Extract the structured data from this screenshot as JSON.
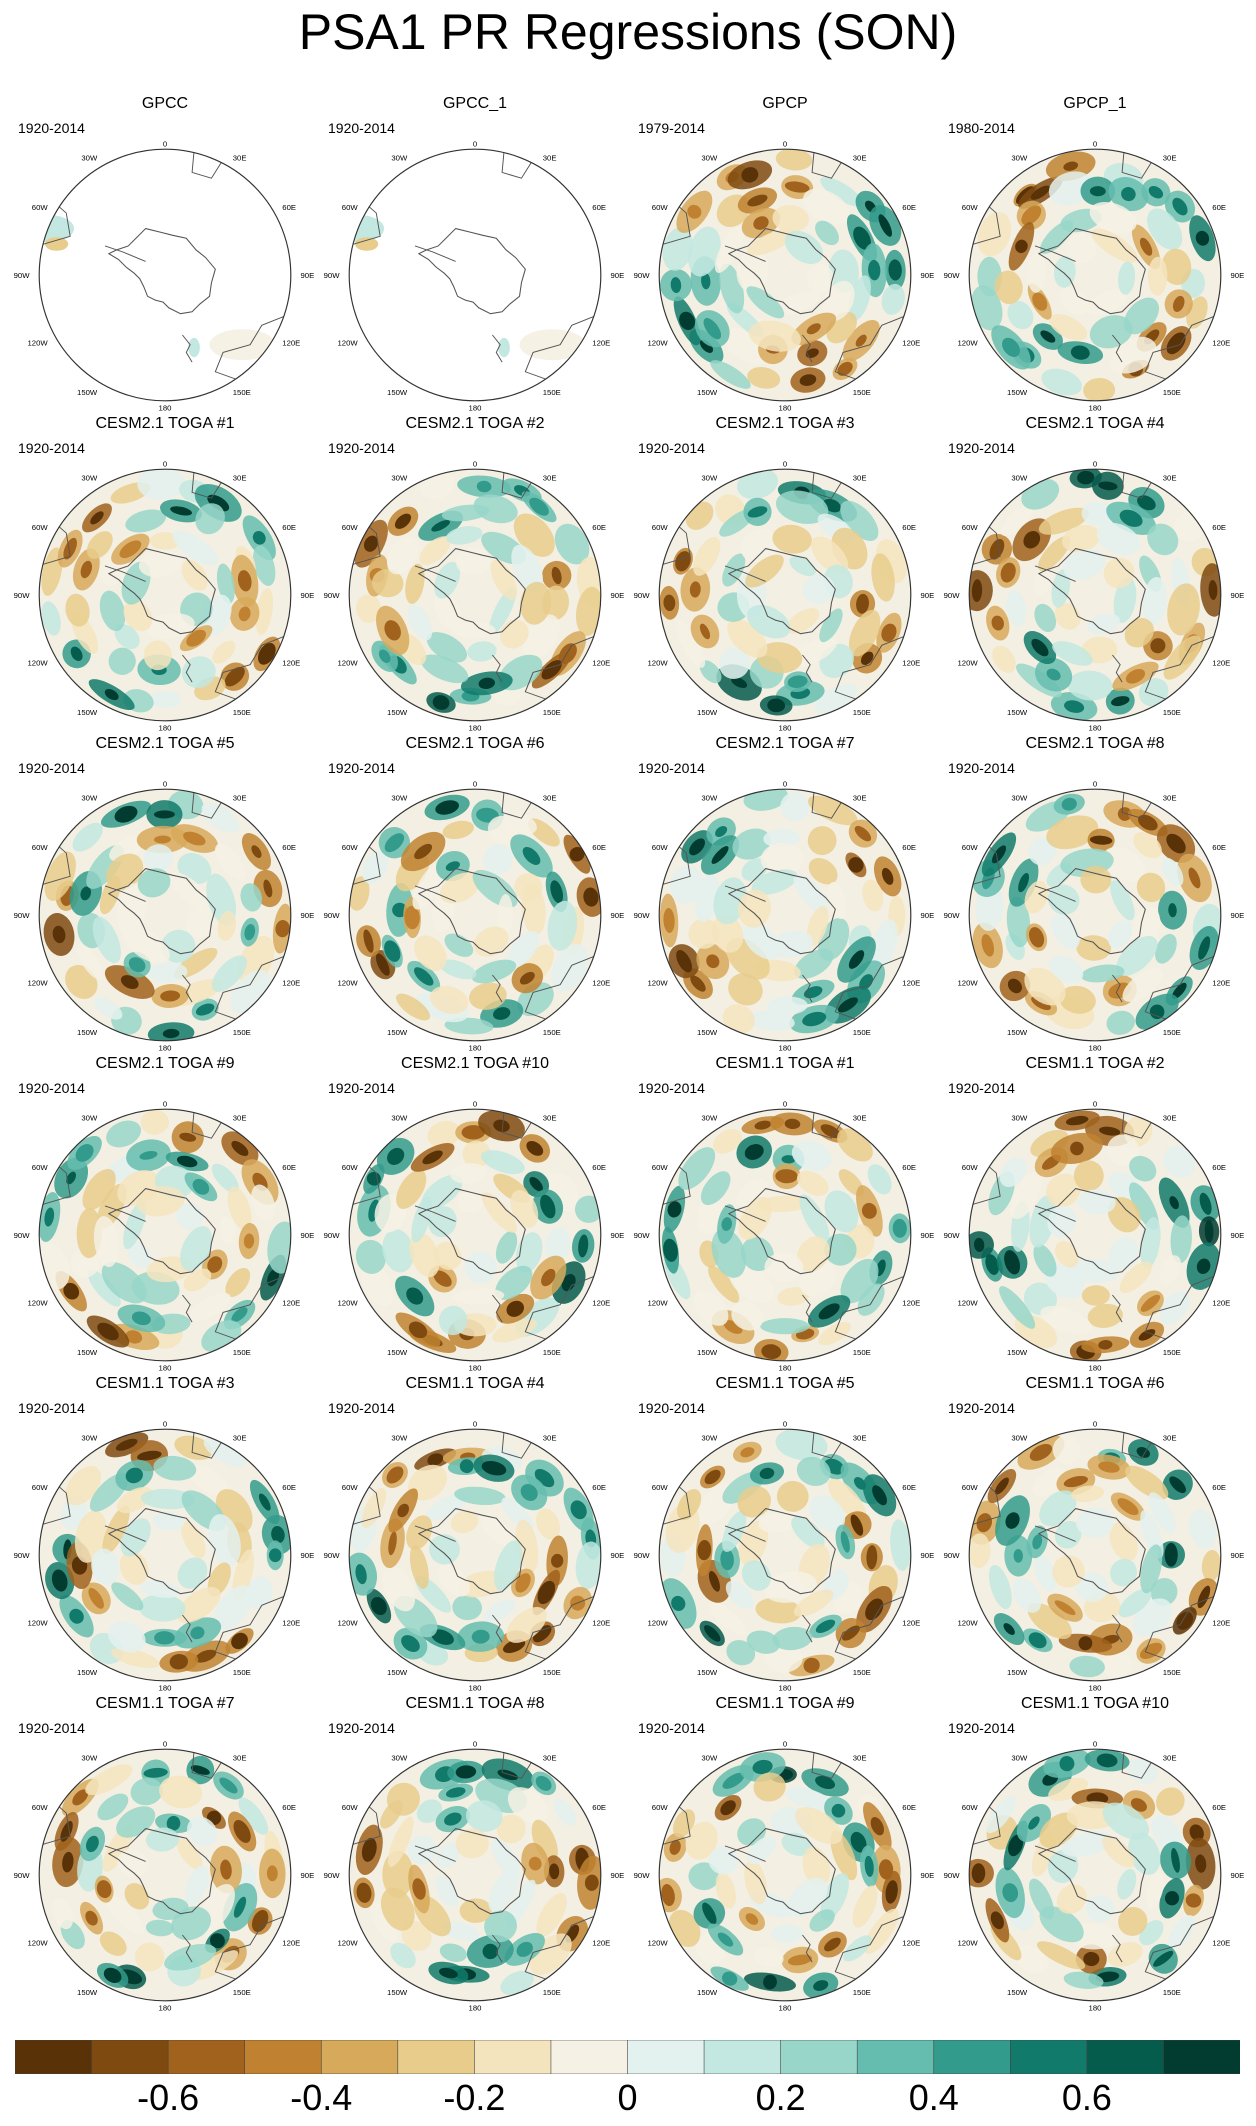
{
  "title": "PSA1 PR Regressions (SON)",
  "map_labels": {
    "top": "0",
    "bottom": "180",
    "left": [
      "30W",
      "60W",
      "90W",
      "120W",
      "150W"
    ],
    "right": [
      "30E",
      "60E",
      "90E",
      "120E",
      "150E"
    ]
  },
  "panels": [
    {
      "title": "GPCC",
      "years": "1920-2014",
      "data": "sparse"
    },
    {
      "title": "GPCC_1",
      "years": "1920-2014",
      "data": "sparse"
    },
    {
      "title": "GPCP",
      "years": "1979-2014",
      "data": "full"
    },
    {
      "title": "GPCP_1",
      "years": "1980-2014",
      "data": "full"
    },
    {
      "title": "CESM2.1 TOGA #1",
      "years": "1920-2014",
      "data": "full"
    },
    {
      "title": "CESM2.1 TOGA #2",
      "years": "1920-2014",
      "data": "full"
    },
    {
      "title": "CESM2.1 TOGA #3",
      "years": "1920-2014",
      "data": "full"
    },
    {
      "title": "CESM2.1 TOGA #4",
      "years": "1920-2014",
      "data": "full"
    },
    {
      "title": "CESM2.1 TOGA #5",
      "years": "1920-2014",
      "data": "full"
    },
    {
      "title": "CESM2.1 TOGA #6",
      "years": "1920-2014",
      "data": "full"
    },
    {
      "title": "CESM2.1 TOGA #7",
      "years": "1920-2014",
      "data": "full"
    },
    {
      "title": "CESM2.1 TOGA #8",
      "years": "1920-2014",
      "data": "full"
    },
    {
      "title": "CESM2.1 TOGA #9",
      "years": "1920-2014",
      "data": "full"
    },
    {
      "title": "CESM2.1 TOGA #10",
      "years": "1920-2014",
      "data": "full"
    },
    {
      "title": "CESM1.1 TOGA #1",
      "years": "1920-2014",
      "data": "full"
    },
    {
      "title": "CESM1.1 TOGA #2",
      "years": "1920-2014",
      "data": "full"
    },
    {
      "title": "CESM1.1 TOGA #3",
      "years": "1920-2014",
      "data": "full"
    },
    {
      "title": "CESM1.1 TOGA #4",
      "years": "1920-2014",
      "data": "full"
    },
    {
      "title": "CESM1.1 TOGA #5",
      "years": "1920-2014",
      "data": "full"
    },
    {
      "title": "CESM1.1 TOGA #6",
      "years": "1920-2014",
      "data": "full"
    },
    {
      "title": "CESM1.1 TOGA #7",
      "years": "1920-2014",
      "data": "full"
    },
    {
      "title": "CESM1.1 TOGA #8",
      "years": "1920-2014",
      "data": "full"
    },
    {
      "title": "CESM1.1 TOGA #9",
      "years": "1920-2014",
      "data": "full"
    },
    {
      "title": "CESM1.1 TOGA #10",
      "years": "1920-2014",
      "data": "full"
    }
  ],
  "colorbar": {
    "colors": [
      "#5a3207",
      "#7f4a10",
      "#a0621c",
      "#c08230",
      "#d7a95a",
      "#e8cc8c",
      "#f4e4be",
      "#f5f1e4",
      "#e3f1ef",
      "#c2e8e1",
      "#97d6c9",
      "#65bdaf",
      "#339b8c",
      "#117a6a",
      "#055b4c",
      "#023c31"
    ],
    "ticks": [
      "-0.6",
      "-0.4",
      "-0.2",
      "0",
      "0.2",
      "0.4",
      "0.6"
    ],
    "tick_values": [
      -0.6,
      -0.4,
      -0.2,
      0,
      0.2,
      0.4,
      0.6
    ],
    "range": [
      -0.8,
      0.8
    ]
  }
}
